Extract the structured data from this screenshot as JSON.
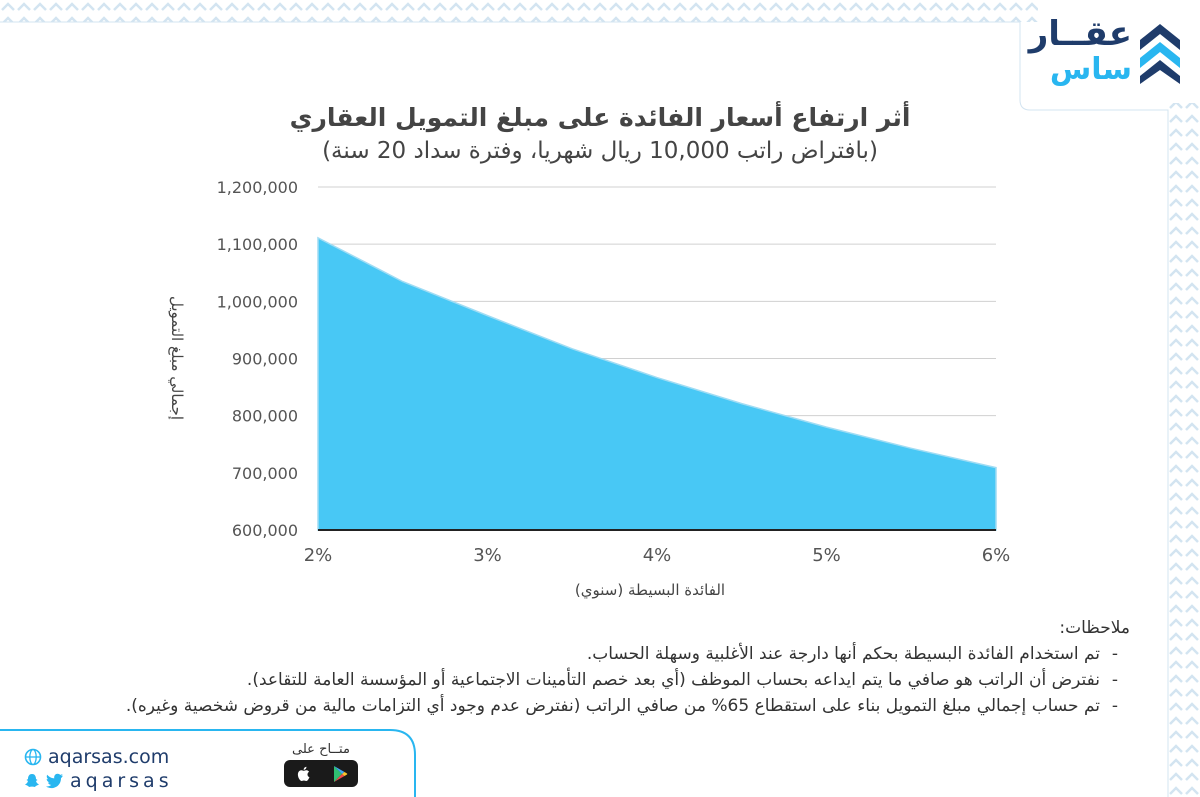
{
  "brand": {
    "name_line1": "عقــار",
    "name_line2": "ساس",
    "website": "aqarsas.com",
    "social": "aqarsas",
    "store_label": "متــاح على",
    "colors": {
      "navy": "#1f3c6b",
      "cyan": "#29b6f0",
      "area_fill": "#48c8f5"
    }
  },
  "chart_data": {
    "type": "area",
    "title": "أثر ارتفاع أسعار الفائدة على مبلغ التمويل العقاري",
    "subtitle": "(بافتراض راتب 10,000 ريال شهريا، وفترة سداد 20 سنة)",
    "xlabel": "الفائدة البسيطة (سنوي)",
    "ylabel": "إجمالي مبلغ التمويل",
    "x": [
      2,
      2.5,
      3,
      3.5,
      4,
      4.5,
      5,
      5.5,
      6
    ],
    "categories": [
      "2%",
      "3%",
      "4%",
      "5%",
      "6%"
    ],
    "values": [
      1111111,
      1034483,
      975000,
      917000,
      866667,
      821053,
      780000,
      742857,
      709091
    ],
    "yticks": [
      "600,000",
      "700,000",
      "800,000",
      "900,000",
      "1,000,000",
      "1,100,000",
      "1,200,000"
    ],
    "ylim": [
      600000,
      1200000
    ],
    "xlim": [
      2,
      6
    ],
    "grid": true,
    "legend": "none"
  },
  "notes": {
    "heading": "ملاحظات:",
    "items": [
      "تم استخدام الفائدة البسيطة بحكم أنها دارجة عند الأغلبية وسهلة الحساب.",
      "نفترض أن الراتب هو صافي ما يتم ايداعه بحساب الموظف (أي بعد خصم التأمينات الاجتماعية أو المؤسسة العامة للتقاعد).",
      "تم حساب إجمالي مبلغ التمويل بناء على استقطاع 65% من صافي الراتب (نفترض عدم وجود أي التزامات مالية من قروض شخصية وغيره)."
    ]
  }
}
